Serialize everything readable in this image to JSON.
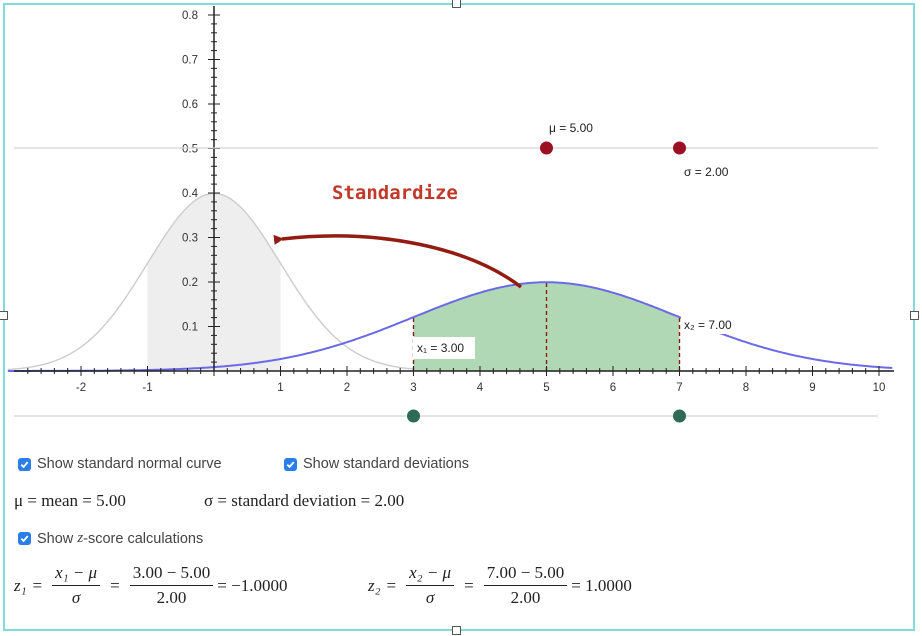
{
  "graph": {
    "y_ticks": [
      "0.8",
      "0.7",
      "0.6",
      "0.5",
      "0.4",
      "0.3",
      "0.2",
      "0.1"
    ],
    "x_ticks": [
      "-2",
      "-1",
      "1",
      "2",
      "3",
      "4",
      "5",
      "6",
      "7",
      "8",
      "9",
      "10"
    ],
    "mu_label": "μ = 5.00",
    "sigma_label": "σ = 2.00",
    "standardize_label": "Standardize",
    "x1_label": "x₁ = 3.00",
    "x2_label": "x₂ = 7.00"
  },
  "chart_data": {
    "type": "line",
    "title": "",
    "xlim": [
      -3.1,
      10.2
    ],
    "ylim": [
      0,
      0.8
    ],
    "series": [
      {
        "name": "standard normal",
        "mean": 0,
        "sd": 1,
        "shaded_from": -1,
        "shaded_to": 1,
        "color": "#cccccc"
      },
      {
        "name": "normal",
        "mean": 5,
        "sd": 2,
        "shaded_from": 3,
        "shaded_to": 7,
        "color": "#6a6ae8"
      }
    ],
    "points": {
      "mu": 5.0,
      "sigma": 2.0,
      "x1": 3.0,
      "x2": 7.0
    },
    "colors": {
      "mean_point": "#9b1022",
      "x_point": "#2e6b57",
      "shade": "#b1d8b4",
      "arrow": "#921b12",
      "standardize": "#c0392b"
    }
  },
  "controls": {
    "show_standard_normal": "Show standard normal curve",
    "show_std_devs": "Show standard deviations",
    "show_z_calcs_prefix": "Show ",
    "show_z_calcs_var": "z",
    "show_z_calcs_suffix": "-score calculations"
  },
  "stats": {
    "mean_line": "μ = mean = 5.00",
    "sd_line": "σ = standard deviation = 2.00"
  },
  "z1": {
    "lhs": "z₁",
    "frac_num": "x₁ − μ",
    "frac_den": "σ",
    "val_num": "3.00 − 5.00",
    "val_den": "2.00",
    "result": "= −1.0000"
  },
  "z2": {
    "lhs": "z₂",
    "frac_num": "x₂ − μ",
    "frac_den": "σ",
    "val_num": "7.00 − 5.00",
    "val_den": "2.00",
    "result": "= 1.0000"
  }
}
